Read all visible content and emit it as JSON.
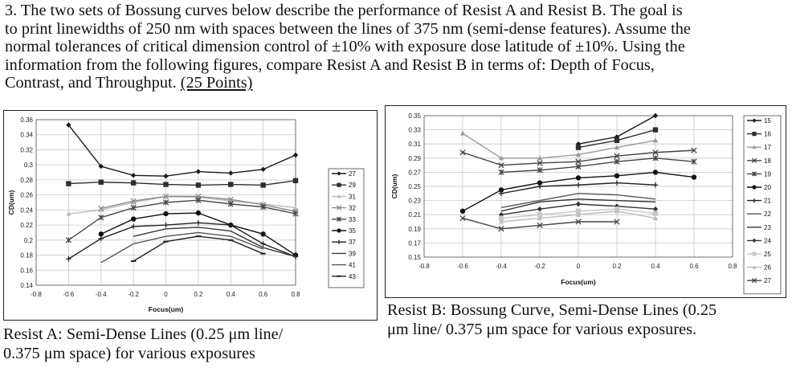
{
  "question": {
    "line1": "3. The two sets of Bossung curves below describe the performance of Resist A and Resist B.  The goal is",
    "line2": "to print linewidths of 250 nm with spaces between the lines of 375 nm (semi-dense features). Assume the",
    "line3": "normal tolerances of critical dimension control of ±10% with exposure dose latitude of  ±10%. Using the",
    "line4": "information from the following figures, compare Resist A and Resist B in terms of: Depth of Focus,",
    "line5": "Contrast, and Throughput. ",
    "points": "(25 Points)"
  },
  "caption_a": {
    "line1": "Resist A: Semi-Dense Lines (0.25 μm line/",
    "line2": "0.375 μm space) for various exposures"
  },
  "caption_b": {
    "line1": "Resist B: Bossung Curve, Semi-Dense Lines (0.25",
    "line2": "μm line/ 0.375 μm space for various exposures."
  },
  "chart_data": [
    {
      "type": "line",
      "xlabel": "Focus(um)",
      "ylabel": "CD(um)",
      "xlim": [
        -0.8,
        0.8
      ],
      "ylim": [
        0.14,
        0.36
      ],
      "xticks": [
        "-0.8",
        "-0.6",
        "-0.4",
        "-0.2",
        "0",
        "0.2",
        "0.4",
        "0.6",
        "0.8"
      ],
      "yticks": [
        "0.14",
        "0.16",
        "0.18",
        "0.2",
        "0.22",
        "0.24",
        "0.26",
        "0.28",
        "0.3",
        "0.32",
        "0.34",
        "0.36"
      ],
      "grid": true,
      "legend_position": "right",
      "x": [
        -0.6,
        -0.4,
        -0.2,
        0,
        0.2,
        0.4,
        0.6,
        0.8
      ],
      "series": [
        {
          "name": "27",
          "marker": "diamond",
          "color": "#1a1a1a",
          "values": [
            0.353,
            0.298,
            0.286,
            0.285,
            0.291,
            0.289,
            0.294,
            0.313
          ]
        },
        {
          "name": "29",
          "marker": "square",
          "color": "#2e2e2e",
          "values": [
            0.275,
            0.277,
            0.276,
            0.274,
            0.273,
            0.274,
            0.273,
            0.279
          ]
        },
        {
          "name": "31",
          "marker": "triangle",
          "color": "#bcbcbc",
          "values": [
            0.235,
            0.24,
            0.25,
            0.258,
            0.257,
            0.252,
            0.248,
            0.243
          ]
        },
        {
          "name": "32",
          "marker": "x",
          "color": "#8a8a8a",
          "values": [
            null,
            0.242,
            0.252,
            0.258,
            0.258,
            0.254,
            0.247,
            0.238
          ]
        },
        {
          "name": "33",
          "marker": "star",
          "color": "#4a4a4a",
          "values": [
            0.2,
            0.23,
            0.243,
            0.25,
            0.253,
            0.248,
            0.244,
            0.235
          ]
        },
        {
          "name": "35",
          "marker": "circle",
          "color": "#111111",
          "values": [
            null,
            0.208,
            0.228,
            0.235,
            0.236,
            0.22,
            0.208,
            0.18
          ]
        },
        {
          "name": "37",
          "marker": "plus",
          "color": "#222222",
          "values": [
            0.175,
            0.202,
            0.218,
            0.22,
            0.223,
            0.22,
            0.195,
            0.178
          ]
        },
        {
          "name": "39",
          "marker": "none",
          "color": "#3a3a3a",
          "values": [
            null,
            null,
            0.205,
            0.215,
            0.217,
            0.212,
            0.19,
            0.178
          ]
        },
        {
          "name": "41",
          "marker": "none",
          "color": "#555555",
          "values": [
            null,
            0.17,
            0.195,
            0.205,
            0.21,
            0.205,
            0.188,
            null
          ]
        },
        {
          "name": "43",
          "marker": "dash",
          "color": "#222222",
          "values": [
            null,
            null,
            0.172,
            0.198,
            0.205,
            0.2,
            0.182,
            null
          ]
        }
      ]
    },
    {
      "type": "line",
      "xlabel": "Focus(um)",
      "ylabel": "CD(um)",
      "xlim": [
        -0.8,
        0.8
      ],
      "ylim": [
        0.15,
        0.35
      ],
      "xticks": [
        "-0.8",
        "-0.6",
        "-0.4",
        "-0.2",
        "0",
        "0.2",
        "0.4",
        "0.6",
        "0.8"
      ],
      "yticks": [
        "0.15",
        "0.17",
        "0.19",
        "0.21",
        "0.23",
        "0.25",
        "0.27",
        "0.29",
        "0.31",
        "0.33",
        "0.35"
      ],
      "grid": true,
      "legend_position": "right",
      "x": [
        -0.6,
        -0.4,
        -0.2,
        0,
        0.2,
        0.4,
        0.6
      ],
      "series": [
        {
          "name": "15",
          "marker": "diamond",
          "color": "#1a1a1a",
          "values": [
            null,
            null,
            null,
            0.31,
            0.32,
            0.35,
            null
          ]
        },
        {
          "name": "16",
          "marker": "square",
          "color": "#2e2e2e",
          "values": [
            null,
            null,
            null,
            0.305,
            0.315,
            0.33,
            null
          ]
        },
        {
          "name": "17",
          "marker": "triangle",
          "color": "#9a9a9a",
          "values": [
            0.325,
            0.29,
            0.29,
            0.295,
            0.305,
            0.315,
            null
          ]
        },
        {
          "name": "18",
          "marker": "x",
          "color": "#444444",
          "values": [
            0.298,
            0.28,
            0.283,
            0.285,
            0.293,
            0.298,
            0.301
          ]
        },
        {
          "name": "19",
          "marker": "star",
          "color": "#444444",
          "values": [
            null,
            0.27,
            0.273,
            0.278,
            0.285,
            0.29,
            0.285
          ]
        },
        {
          "name": "20",
          "marker": "circle",
          "color": "#111111",
          "values": [
            0.215,
            0.245,
            0.255,
            0.262,
            0.265,
            0.27,
            0.263
          ]
        },
        {
          "name": "21",
          "marker": "plus",
          "color": "#222222",
          "values": [
            null,
            0.24,
            0.25,
            0.252,
            0.255,
            0.252,
            null
          ]
        },
        {
          "name": "22",
          "marker": "none",
          "color": "#555555",
          "values": [
            null,
            0.22,
            0.23,
            0.24,
            0.238,
            0.232,
            null
          ]
        },
        {
          "name": "23",
          "marker": "none",
          "color": "#333333",
          "values": [
            null,
            0.215,
            0.228,
            0.232,
            0.23,
            0.228,
            null
          ]
        },
        {
          "name": "24",
          "marker": "diamond",
          "color": "#333333",
          "values": [
            null,
            0.21,
            0.218,
            0.225,
            0.222,
            0.218,
            null
          ]
        },
        {
          "name": "25",
          "marker": "square",
          "color": "#c8c8c8",
          "values": [
            null,
            0.205,
            0.21,
            0.215,
            0.218,
            0.212,
            null
          ]
        },
        {
          "name": "26",
          "marker": "triangle",
          "color": "#bdbdbd",
          "values": [
            null,
            0.2,
            0.205,
            0.21,
            0.215,
            0.205,
            null
          ]
        },
        {
          "name": "27",
          "marker": "x",
          "color": "#444444",
          "values": [
            0.205,
            0.19,
            0.195,
            0.2,
            0.2,
            null,
            null
          ]
        }
      ]
    }
  ]
}
